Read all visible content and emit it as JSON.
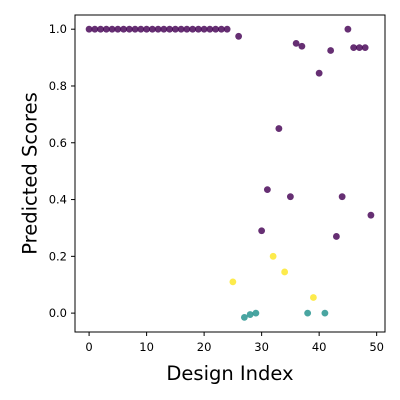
{
  "chart_data": {
    "type": "scatter",
    "title": "",
    "xlabel": "Design Index",
    "ylabel": "Predicted Scores",
    "xlim": [
      -2.45,
      51.45
    ],
    "ylim": [
      -0.0665,
      1.05
    ],
    "xticks": [
      0,
      10,
      20,
      30,
      40,
      50
    ],
    "xtick_labels": [
      "0",
      "10",
      "20",
      "30",
      "40",
      "50"
    ],
    "yticks": [
      0.0,
      0.2,
      0.4,
      0.6,
      0.8,
      1.0
    ],
    "ytick_labels": [
      "0.0",
      "0.2",
      "0.4",
      "0.6",
      "0.8",
      "1.0"
    ],
    "grid": false,
    "colors": {
      "purple": "#440154",
      "teal": "#21918c",
      "yellow": "#fde725"
    },
    "points": [
      {
        "x": 0,
        "y": 1.0,
        "color": "purple"
      },
      {
        "x": 1,
        "y": 1.0,
        "color": "purple"
      },
      {
        "x": 2,
        "y": 1.0,
        "color": "purple"
      },
      {
        "x": 3,
        "y": 1.0,
        "color": "purple"
      },
      {
        "x": 4,
        "y": 1.0,
        "color": "purple"
      },
      {
        "x": 5,
        "y": 1.0,
        "color": "purple"
      },
      {
        "x": 6,
        "y": 1.0,
        "color": "purple"
      },
      {
        "x": 7,
        "y": 1.0,
        "color": "purple"
      },
      {
        "x": 8,
        "y": 1.0,
        "color": "purple"
      },
      {
        "x": 9,
        "y": 1.0,
        "color": "purple"
      },
      {
        "x": 10,
        "y": 1.0,
        "color": "purple"
      },
      {
        "x": 11,
        "y": 1.0,
        "color": "purple"
      },
      {
        "x": 12,
        "y": 1.0,
        "color": "purple"
      },
      {
        "x": 13,
        "y": 1.0,
        "color": "purple"
      },
      {
        "x": 14,
        "y": 1.0,
        "color": "purple"
      },
      {
        "x": 15,
        "y": 1.0,
        "color": "purple"
      },
      {
        "x": 16,
        "y": 1.0,
        "color": "purple"
      },
      {
        "x": 17,
        "y": 1.0,
        "color": "purple"
      },
      {
        "x": 18,
        "y": 1.0,
        "color": "purple"
      },
      {
        "x": 19,
        "y": 1.0,
        "color": "purple"
      },
      {
        "x": 20,
        "y": 1.0,
        "color": "purple"
      },
      {
        "x": 21,
        "y": 1.0,
        "color": "purple"
      },
      {
        "x": 22,
        "y": 1.0,
        "color": "purple"
      },
      {
        "x": 23,
        "y": 1.0,
        "color": "purple"
      },
      {
        "x": 24,
        "y": 1.0,
        "color": "purple"
      },
      {
        "x": 25,
        "y": 0.11,
        "color": "yellow"
      },
      {
        "x": 26,
        "y": 0.975,
        "color": "purple"
      },
      {
        "x": 27,
        "y": -0.015,
        "color": "teal"
      },
      {
        "x": 28,
        "y": -0.005,
        "color": "teal"
      },
      {
        "x": 29,
        "y": 0.0,
        "color": "teal"
      },
      {
        "x": 30,
        "y": 0.29,
        "color": "purple"
      },
      {
        "x": 31,
        "y": 0.435,
        "color": "purple"
      },
      {
        "x": 32,
        "y": 0.2,
        "color": "yellow"
      },
      {
        "x": 33,
        "y": 0.65,
        "color": "purple"
      },
      {
        "x": 34,
        "y": 0.145,
        "color": "yellow"
      },
      {
        "x": 35,
        "y": 0.41,
        "color": "purple"
      },
      {
        "x": 36,
        "y": 0.95,
        "color": "purple"
      },
      {
        "x": 37,
        "y": 0.94,
        "color": "purple"
      },
      {
        "x": 38,
        "y": 0.0,
        "color": "teal"
      },
      {
        "x": 39,
        "y": 0.055,
        "color": "yellow"
      },
      {
        "x": 40,
        "y": 0.845,
        "color": "purple"
      },
      {
        "x": 41,
        "y": 0.0,
        "color": "teal"
      },
      {
        "x": 42,
        "y": 0.925,
        "color": "purple"
      },
      {
        "x": 43,
        "y": 0.27,
        "color": "purple"
      },
      {
        "x": 44,
        "y": 0.41,
        "color": "purple"
      },
      {
        "x": 45,
        "y": 1.0,
        "color": "purple"
      },
      {
        "x": 46,
        "y": 0.935,
        "color": "purple"
      },
      {
        "x": 47,
        "y": 0.935,
        "color": "purple"
      },
      {
        "x": 48,
        "y": 0.935,
        "color": "purple"
      },
      {
        "x": 49,
        "y": 0.345,
        "color": "purple"
      }
    ]
  }
}
